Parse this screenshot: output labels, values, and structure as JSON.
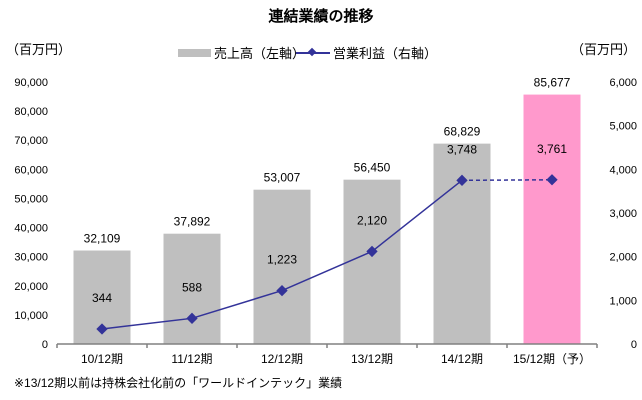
{
  "chart_data": {
    "type": "bar+line",
    "title": "連結業績の推移",
    "left_axis_unit": "（百万円）",
    "right_axis_unit": "（百万円）",
    "categories": [
      "10/12期",
      "11/12期",
      "12/12期",
      "13/12期",
      "14/12期",
      "15/12期（予）"
    ],
    "left_ylim": [
      0,
      90000
    ],
    "left_ticks": [
      "0",
      "10,000",
      "20,000",
      "30,000",
      "40,000",
      "50,000",
      "60,000",
      "70,000",
      "80,000",
      "90,000"
    ],
    "right_ylim": [
      0,
      6000
    ],
    "right_ticks": [
      "0",
      "1,000",
      "2,000",
      "3,000",
      "4,000",
      "5,000",
      "6,000"
    ],
    "series": [
      {
        "name": "売上高（左軸）",
        "type": "bar",
        "axis": "left",
        "values": [
          32109,
          37892,
          53007,
          56450,
          68829,
          85677
        ],
        "labels": [
          "32,109",
          "37,892",
          "53,007",
          "56,450",
          "68,829",
          "85,677"
        ],
        "color": "#bfbfbf",
        "forecast_color": "#ff99cc"
      },
      {
        "name": "営業利益（右軸）",
        "type": "line",
        "axis": "right",
        "values": [
          344,
          588,
          1223,
          2120,
          3748,
          3761
        ],
        "labels": [
          "344",
          "588",
          "1,223",
          "2,120",
          "3,748",
          "3,761"
        ],
        "color": "#333399",
        "forecast_dashed": true
      }
    ],
    "grid": false,
    "legend": "top-center"
  },
  "footnote": "※13/12期以前は持株会社化前の「ワールドインテック」業績"
}
